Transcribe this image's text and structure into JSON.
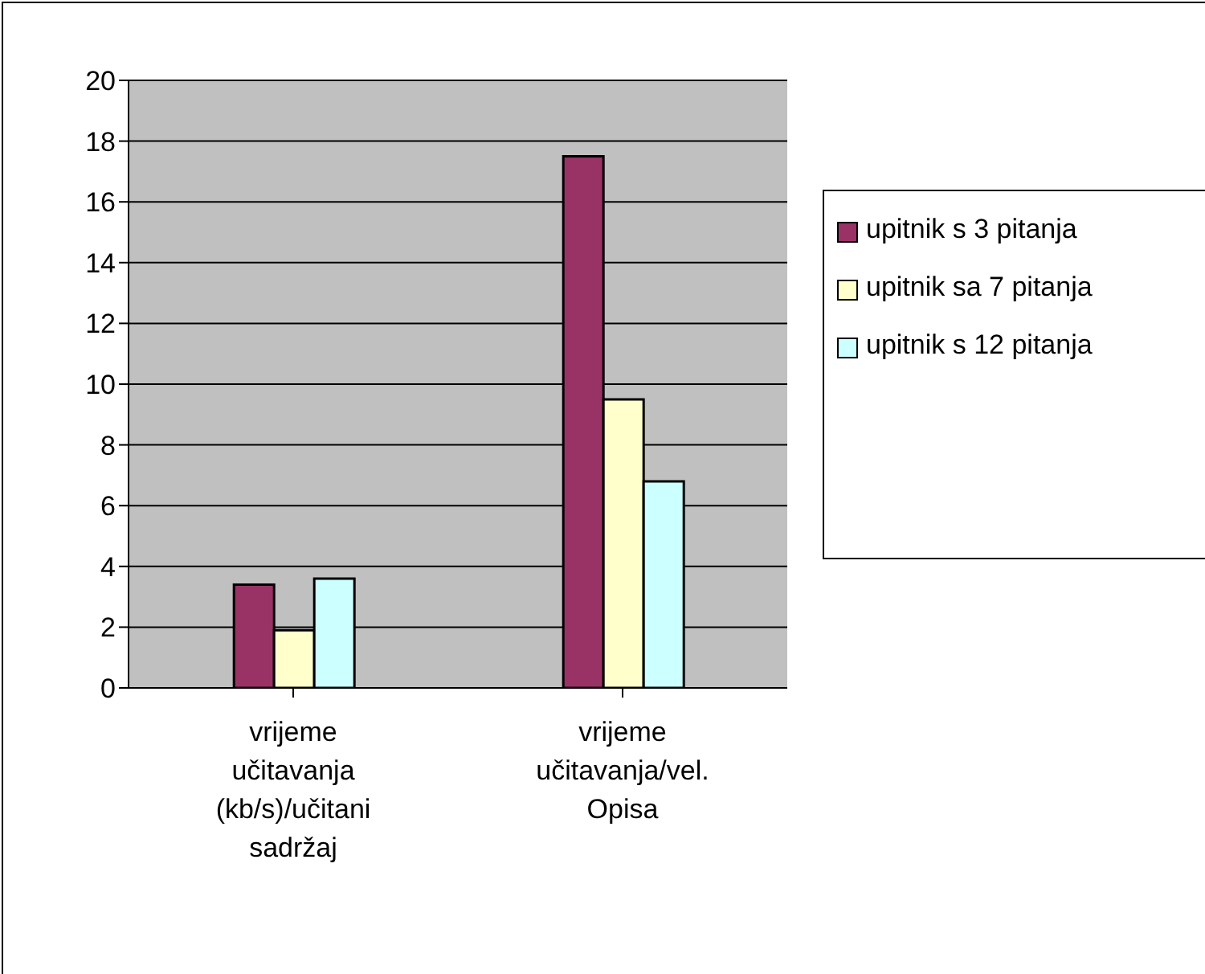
{
  "chart_data": {
    "type": "bar",
    "categories": [
      "vrijeme učitavanja (kb/s)/učitani sadržaj",
      "vrijeme učitavanja/vel. Opisa"
    ],
    "series": [
      {
        "name": "upitnik s 3 pitanja",
        "color": "#993366",
        "values": [
          3.4,
          17.5
        ]
      },
      {
        "name": "upitnik sa 7 pitanja",
        "color": "#ffffcc",
        "values": [
          1.9,
          9.5
        ]
      },
      {
        "name": "upitnik s 12 pitanja",
        "color": "#ccffff",
        "values": [
          3.6,
          6.8
        ]
      }
    ],
    "ylim": [
      0,
      20
    ],
    "yticks": [
      0,
      2,
      4,
      6,
      8,
      10,
      12,
      14,
      16,
      18,
      20
    ],
    "grid": "y",
    "legend": "right"
  }
}
